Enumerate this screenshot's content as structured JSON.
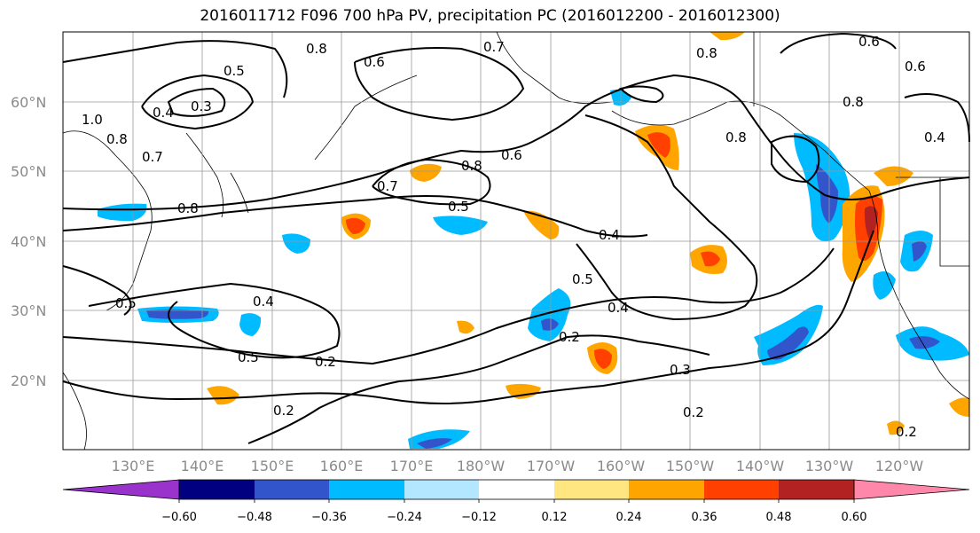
{
  "title": "2016011712 F096 700 hPa PV, precipitation PC (2016012200 - 2016012300)",
  "map": {
    "lon_labels": [
      "130°E",
      "140°E",
      "150°E",
      "160°E",
      "170°E",
      "180°W",
      "170°W",
      "160°W",
      "150°W",
      "140°W",
      "130°W",
      "120°W"
    ],
    "lat_labels": [
      "60°N",
      "50°N",
      "40°N",
      "30°N",
      "20°N"
    ],
    "contour_labels": [
      "0.8",
      "0.7",
      "0.6",
      "0.8",
      "0.6",
      "0.5",
      "0.4",
      "0.3",
      "1.0",
      "0.8",
      "0.7",
      "0.8",
      "0.7",
      "0.8",
      "0.6",
      "0.5",
      "0.4",
      "0.5",
      "0.4",
      "0.5",
      "0.4",
      "0.5",
      "0.2",
      "0.2",
      "0.3",
      "0.2",
      "0.2",
      "0.8",
      "0.4",
      "0.6",
      "0.8",
      "0.2"
    ]
  },
  "colorbar": {
    "ticks": [
      "−0.60",
      "−0.48",
      "−0.36",
      "−0.24",
      "−0.12",
      "0.12",
      "0.24",
      "0.36",
      "0.48",
      "0.60"
    ],
    "colors": [
      "#9933cc",
      "#000080",
      "#3355cc",
      "#00bbff",
      "#b3e6ff",
      "#ffffff",
      "#ffe680",
      "#ffa500",
      "#ff4000",
      "#b22222",
      "#ff88aa"
    ]
  },
  "shading_colors": {
    "strong_neg": "#3355cc",
    "neg": "#00bbff",
    "pos": "#ffa500",
    "strong_pos": "#ff4000"
  }
}
